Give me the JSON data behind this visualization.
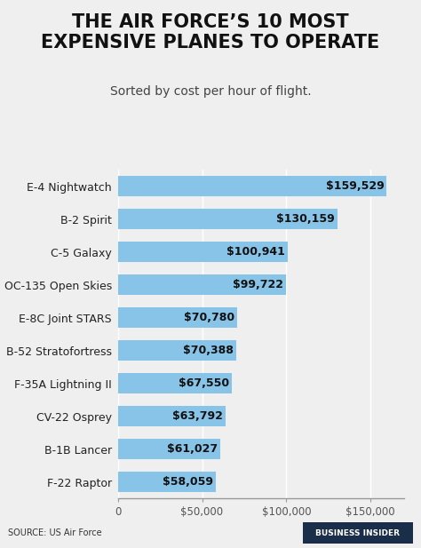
{
  "title": "THE AIR FORCE’S 10 MOST\nEXPENSIVE PLANES TO OPERATE",
  "subtitle": "Sorted by cost per hour of flight.",
  "categories": [
    "F-22 Raptor",
    "B-1B Lancer",
    "CV-22 Osprey",
    "F-35A Lightning II",
    "B-52 Stratofortress",
    "E-8C Joint STARS",
    "OC-135 Open Skies",
    "C-5 Galaxy",
    "B-2 Spirit",
    "E-4 Nightwatch"
  ],
  "values": [
    58059,
    61027,
    63792,
    67550,
    70388,
    70780,
    99722,
    100941,
    130159,
    159529
  ],
  "bar_color": "#87C4E8",
  "background_color": "#efefef",
  "plot_bg_color": "#efefef",
  "footer_color": "#d8d8d8",
  "title_fontsize": 15,
  "subtitle_fontsize": 10,
  "label_fontsize": 9,
  "value_fontsize": 9,
  "source_text": "SOURCE: US Air Force",
  "brand_text": "BUSINESS INSIDER",
  "xlim": [
    0,
    170000
  ],
  "xticks": [
    0,
    50000,
    100000,
    150000
  ],
  "xtick_labels": [
    "0",
    "$50,000",
    "$100,000",
    "$150,000"
  ],
  "bar_height": 0.62,
  "bar_gap": 0.38
}
